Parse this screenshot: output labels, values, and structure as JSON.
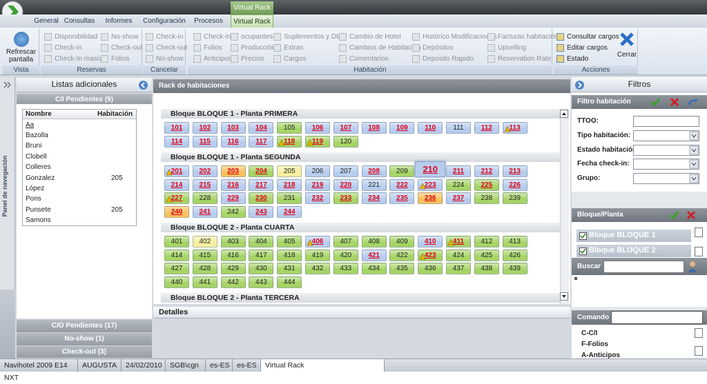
{
  "window_title": "Virtual Rack",
  "tabs": [
    "General",
    "Consultas",
    "Informes",
    "Configuración",
    "Procesos",
    "Virtual Rack"
  ],
  "active_tab": 5,
  "ribbon": [
    {
      "label": "Vista",
      "enabled": true,
      "columns": [
        [
          "Refrescar pantalla"
        ]
      ]
    },
    {
      "label": "Reservas",
      "columns": [
        [
          "Disponibilidad",
          "Check-in",
          "Check-In masivo"
        ],
        [
          "No-show",
          "Check-out",
          "Folios"
        ]
      ]
    },
    {
      "label": "Cancelar",
      "columns": [
        [
          "Check-in",
          "Check-out",
          "No-show"
        ]
      ]
    },
    {
      "label": "Habitación",
      "columns": [
        [
          "Check-in",
          "Folios",
          "Anticipos"
        ],
        [
          "ocupantes",
          "Producción",
          "Precios"
        ],
        [
          "Suplementos y Dtos",
          "Extras",
          "Cargos"
        ],
        [
          "Cambio de Hotel",
          "Cambios de Habitación",
          "Comentarios"
        ],
        [
          "Histórico Modificaciones",
          "Depósitos",
          "Deposito Rapido"
        ],
        [
          "Facturas habitación",
          "Upselling",
          "Reservation Rate"
        ]
      ]
    },
    {
      "label": "Acciones",
      "enabled": true,
      "columns": [
        [
          "Consultar cargos",
          "Editar cargos",
          "Estado"
        ],
        [
          "Cerrar"
        ]
      ]
    }
  ],
  "left_panel": {
    "nav_label": "Panel de navegación",
    "title": "Listas adicionales",
    "open_list": "C/I Pendientes  (9)",
    "table": {
      "columns": [
        "Nombre",
        "Habitación"
      ],
      "filter": "Aa",
      "rows": [
        [
          "Bazolla"
        ],
        [
          "Bruni"
        ],
        [
          "Clobell"
        ],
        [
          "Colleres"
        ],
        [
          "Gonzalez",
          "205"
        ],
        [
          "López"
        ],
        [
          "Pons"
        ],
        [
          "Punsete",
          "205"
        ],
        [
          "Samons"
        ]
      ]
    },
    "other_lists": [
      "C/O Pendientes  (17)",
      "No-show  (1)",
      "Check-out  (3)"
    ]
  },
  "rack": {
    "title": "Rack de habitaciones",
    "details": "Detalles",
    "floors": [
      {
        "title": "Bloque BLOQUE 1  -  Planta PRIMERA",
        "rows": [
          [
            {
              "label": "101",
              "color": "#b7cdee",
              "red": true
            },
            {
              "label": "102",
              "color": "#b7cdee",
              "red": true
            },
            {
              "label": "103",
              "color": "#b7cdee",
              "red": true
            },
            {
              "label": "104",
              "color": "#b7cdee",
              "red": true
            },
            {
              "label": "105",
              "color": "#a6d466"
            },
            {
              "label": "106",
              "color": "#b7cdee",
              "red": true
            },
            {
              "label": "107",
              "color": "#b7cdee",
              "red": true
            },
            {
              "label": "108",
              "color": "#b7cdee",
              "red": true
            },
            {
              "label": "109",
              "color": "#b7cdee",
              "red": true
            },
            {
              "label": "110",
              "color": "#b7cdee",
              "red": true
            },
            {
              "label": "111",
              "color": "#b7cdee"
            },
            {
              "label": "112",
              "color": "#b7cdee",
              "red": true
            },
            {
              "label": "113",
              "color": "#b7cdee",
              "red": true,
              "alert": true
            }
          ],
          [
            {
              "label": "114",
              "color": "#b7cdee",
              "red": true
            },
            {
              "label": "115",
              "color": "#b7cdee",
              "red": true
            },
            {
              "label": "116",
              "color": "#b7cdee",
              "red": true
            },
            {
              "label": "117",
              "color": "#b7cdee",
              "red": true
            },
            {
              "label": "118",
              "color": "#a6d466",
              "red": true,
              "alert": true
            },
            {
              "label": "119",
              "color": "#a6d466",
              "red": true,
              "alert": true
            },
            {
              "label": "120",
              "color": "#a6d466"
            }
          ]
        ]
      },
      {
        "title": "Bloque BLOQUE 1  -  Planta SEGUNDA",
        "rows": [
          [
            {
              "label": "201",
              "color": "#b7cdee",
              "red": true,
              "alert": true
            },
            {
              "label": "202",
              "color": "#b7cdee",
              "red": true
            },
            {
              "label": "203",
              "color": "#f7c25c",
              "red": true
            },
            {
              "label": "204",
              "color": "#a6d466",
              "red": true
            },
            {
              "label": "205",
              "color": "#f5ef9e"
            },
            {
              "label": "206",
              "color": "#b7cdee"
            },
            {
              "label": "207",
              "color": "#b7cdee"
            },
            {
              "label": "208",
              "color": "#b7cdee",
              "red": true
            },
            {
              "label": "209",
              "color": "#a6d466"
            },
            {
              "label": "210",
              "color": "#b7cdee",
              "red": true,
              "selected": true
            },
            {
              "label": "211",
              "color": "#b7cdee",
              "red": true
            },
            {
              "label": "212",
              "color": "#b7cdee",
              "red": true
            },
            {
              "label": "213",
              "color": "#b7cdee",
              "red": true
            }
          ],
          [
            {
              "label": "214",
              "color": "#b7cdee",
              "red": true
            },
            {
              "label": "215",
              "color": "#b7cdee",
              "red": true
            },
            {
              "label": "216",
              "color": "#b7cdee",
              "red": true
            },
            {
              "label": "217",
              "color": "#b7cdee",
              "red": true
            },
            {
              "label": "218",
              "color": "#b7cdee",
              "red": true
            },
            {
              "label": "219",
              "color": "#b7cdee",
              "red": true
            },
            {
              "label": "220",
              "color": "#b7cdee",
              "red": true
            },
            {
              "label": "221",
              "color": "#b7cdee"
            },
            {
              "label": "222",
              "color": "#b7cdee",
              "red": true
            },
            {
              "label": "223",
              "color": "#b7cdee",
              "red": true,
              "alert": true
            },
            {
              "label": "224",
              "color": "#a6d466"
            },
            {
              "label": "225",
              "color": "#a6d466",
              "red": true
            },
            {
              "label": "226",
              "color": "#b7cdee",
              "red": true
            }
          ],
          [
            {
              "label": "227",
              "color": "#a6d466",
              "red": true,
              "alert": true
            },
            {
              "label": "228",
              "color": "#a6d466"
            },
            {
              "label": "229",
              "color": "#b7cdee",
              "red": true
            },
            {
              "label": "230",
              "color": "#a6d466",
              "red": true
            },
            {
              "label": "231",
              "color": "#a6d466"
            },
            {
              "label": "232",
              "color": "#b7cdee",
              "red": true
            },
            {
              "label": "233",
              "color": "#a6d466",
              "red": true
            },
            {
              "label": "234",
              "color": "#b7cdee",
              "red": true
            },
            {
              "label": "235",
              "color": "#b7cdee",
              "red": true
            },
            {
              "label": "236",
              "color": "#f7c25c",
              "red": true
            },
            {
              "label": "237",
              "color": "#b7cdee",
              "red": true
            },
            {
              "label": "238",
              "color": "#a6d466"
            },
            {
              "label": "239",
              "color": "#a6d466"
            }
          ],
          [
            {
              "label": "240",
              "color": "#f7c25c",
              "red": true
            },
            {
              "label": "241",
              "color": "#b7cdee",
              "red": true
            },
            {
              "label": "242",
              "color": "#a6d466"
            },
            {
              "label": "243",
              "color": "#b7cdee",
              "red": true
            },
            {
              "label": "244",
              "color": "#b7cdee",
              "red": true
            }
          ]
        ]
      },
      {
        "title": "Bloque BLOQUE 2  -  Planta CUARTA",
        "rows": [
          [
            {
              "label": "401",
              "color": "#a6d466"
            },
            {
              "label": "402",
              "color": "#f5ef9e"
            },
            {
              "label": "403",
              "color": "#a6d466"
            },
            {
              "label": "404",
              "color": "#a6d466"
            },
            {
              "label": "405",
              "color": "#a6d466"
            },
            {
              "label": "406",
              "color": "#b7cdee",
              "red": true,
              "alert": true
            },
            {
              "label": "407",
              "color": "#a6d466"
            },
            {
              "label": "408",
              "color": "#a6d466"
            },
            {
              "label": "409",
              "color": "#a6d466"
            },
            {
              "label": "410",
              "color": "#b7cdee",
              "red": true
            },
            {
              "label": "411",
              "color": "#a6d466",
              "red": true,
              "alert": true
            },
            {
              "label": "412",
              "color": "#a6d466"
            },
            {
              "label": "413",
              "color": "#a6d466"
            }
          ],
          [
            {
              "label": "414",
              "color": "#a6d466"
            },
            {
              "label": "415",
              "color": "#a6d466"
            },
            {
              "label": "416",
              "color": "#a6d466"
            },
            {
              "label": "417",
              "color": "#a6d466"
            },
            {
              "label": "418",
              "color": "#a6d466"
            },
            {
              "label": "419",
              "color": "#a6d466"
            },
            {
              "label": "420",
              "color": "#a6d466"
            },
            {
              "label": "421",
              "color": "#b7cdee",
              "red": true
            },
            {
              "label": "422",
              "color": "#a6d466"
            },
            {
              "label": "423",
              "color": "#a6d466",
              "red": true,
              "alert": true
            },
            {
              "label": "424",
              "color": "#a6d466"
            },
            {
              "label": "425",
              "color": "#a6d466"
            },
            {
              "label": "426",
              "color": "#a6d466"
            }
          ],
          [
            {
              "label": "427",
              "color": "#a6d466"
            },
            {
              "label": "428",
              "color": "#a6d466"
            },
            {
              "label": "429",
              "color": "#a6d466"
            },
            {
              "label": "430",
              "color": "#a6d466"
            },
            {
              "label": "431",
              "color": "#a6d466"
            },
            {
              "label": "432",
              "color": "#a6d466"
            },
            {
              "label": "433",
              "color": "#a6d466"
            },
            {
              "label": "434",
              "color": "#a6d466"
            },
            {
              "label": "435",
              "color": "#a6d466"
            },
            {
              "label": "436",
              "color": "#a6d466"
            },
            {
              "label": "437",
              "color": "#a6d466"
            },
            {
              "label": "438",
              "color": "#a6d466"
            },
            {
              "label": "439",
              "color": "#a6d466"
            }
          ],
          [
            {
              "label": "440",
              "color": "#a6d466"
            },
            {
              "label": "441",
              "color": "#a6d466"
            },
            {
              "label": "442",
              "color": "#a6d466"
            },
            {
              "label": "443",
              "color": "#a6d466"
            },
            {
              "label": "444",
              "color": "#a6d466"
            }
          ]
        ]
      },
      {
        "title": "Bloque BLOQUE 2  -  Planta TERCERA",
        "rows": []
      }
    ]
  },
  "filters": {
    "title": "Filtros",
    "room_filter": "Filtro habitación",
    "fields": [
      "TTOO:",
      "Tipo habitación:",
      "Estado habitación:",
      "Fecha check-in:",
      "Grupo:"
    ],
    "block_title": "Bloque/Planta",
    "blocks": [
      "Bloque BLOQUE 1",
      "Bloque BLOQUE 2"
    ],
    "search": "Buscar",
    "command": "Comando",
    "commands": [
      "C-C/I",
      "F-Folios",
      "A-Anticipos"
    ]
  },
  "status_bar": [
    "Navihotel 2009 E14 NXT",
    "AUGUSTA",
    "24/02/2010",
    "SGB\\cgn",
    "es-ES",
    "es-ES",
    "Virtual Rack"
  ]
}
